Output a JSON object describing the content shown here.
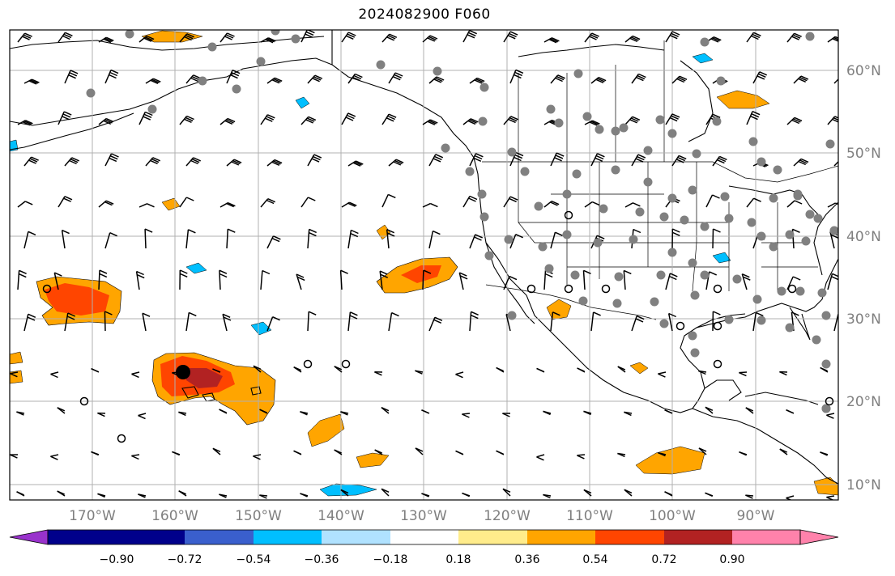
{
  "title": "2024082900 F060",
  "map": {
    "lon_range": [
      -180,
      -80
    ],
    "lat_range": [
      8,
      65
    ],
    "grid": true,
    "lon_labels": [
      "170°W",
      "160°W",
      "150°W",
      "140°W",
      "130°W",
      "120°W",
      "110°W",
      "100°W",
      "90°W"
    ],
    "lat_labels": [
      "60°N",
      "50°N",
      "40°N",
      "30°N",
      "20°N",
      "10°N"
    ],
    "colors": {
      "land_outline": "#000000",
      "grid": "#b0b0b0",
      "station_dot": "#808080"
    }
  },
  "colorbar": {
    "colors": [
      "#9932cc",
      "#00008b",
      "#3a5fcd",
      "#00bfff",
      "#b0e2ff",
      "#ffffff",
      "#ffec8b",
      "#ffa500",
      "#ff4500",
      "#b22222",
      "#ff82ab"
    ],
    "tick_labels": [
      "−0.90",
      "−0.72",
      "−0.54",
      "−0.36",
      "−0.18",
      "0.18",
      "0.36",
      "0.54",
      "0.72",
      "0.90"
    ]
  },
  "shaded_regions": [
    {
      "name": "hawaii-high",
      "level": "0.72",
      "lon": -159,
      "lat": 23
    },
    {
      "name": "west-pacific-high",
      "level": "0.54",
      "lon": -170,
      "lat": 32
    },
    {
      "name": "central-pacific-high",
      "level": "0.54",
      "lon": -127,
      "lat": 34
    }
  ]
}
